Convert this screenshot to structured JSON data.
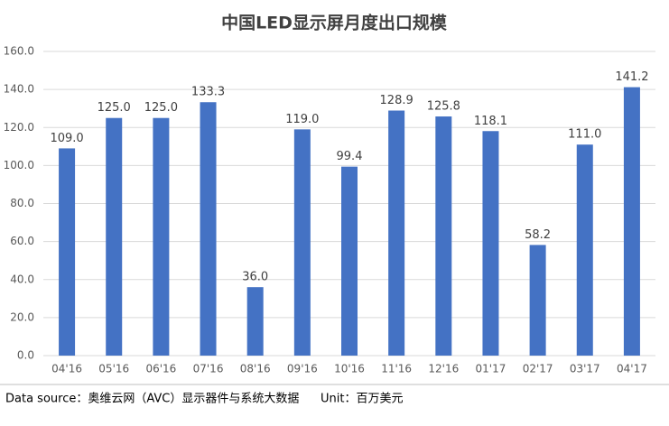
{
  "chart_data": {
    "type": "bar",
    "title": "中国LED显示屏月度出口规模",
    "categories": [
      "04'16",
      "05'16",
      "06'16",
      "07'16",
      "08'16",
      "09'16",
      "10'16",
      "11'16",
      "12'16",
      "01'17",
      "02'17",
      "03'17",
      "04'17"
    ],
    "values": [
      109,
      125,
      125,
      133.3,
      36,
      119,
      99.4,
      128.9,
      125.8,
      118.1,
      58.2,
      111,
      141.2
    ],
    "value_labels": [
      "109.0",
      "125.0",
      "125.0",
      "133.3",
      "36.0",
      "119.0",
      "99.4",
      "128.9",
      "125.8",
      "118.1",
      "58.2",
      "111.0",
      "141.2"
    ],
    "color": "#4472c4",
    "ylim": [
      0,
      160
    ],
    "yticks": [
      {
        "value": 0,
        "label": "0.0"
      },
      {
        "value": 20,
        "label": "20.0"
      },
      {
        "value": 40,
        "label": "40.0"
      },
      {
        "value": 60,
        "label": "60.0"
      },
      {
        "value": 80,
        "label": "80.0"
      },
      {
        "value": 100,
        "label": "100.0"
      },
      {
        "value": 120,
        "label": "120.0"
      },
      {
        "value": 140,
        "label": "140.0"
      },
      {
        "value": 160,
        "label": "160.0"
      }
    ],
    "grid": true,
    "source": "Data source：奥维云网（AVC）显示器件与系统大数据",
    "unit": "Unit：百万美元"
  }
}
